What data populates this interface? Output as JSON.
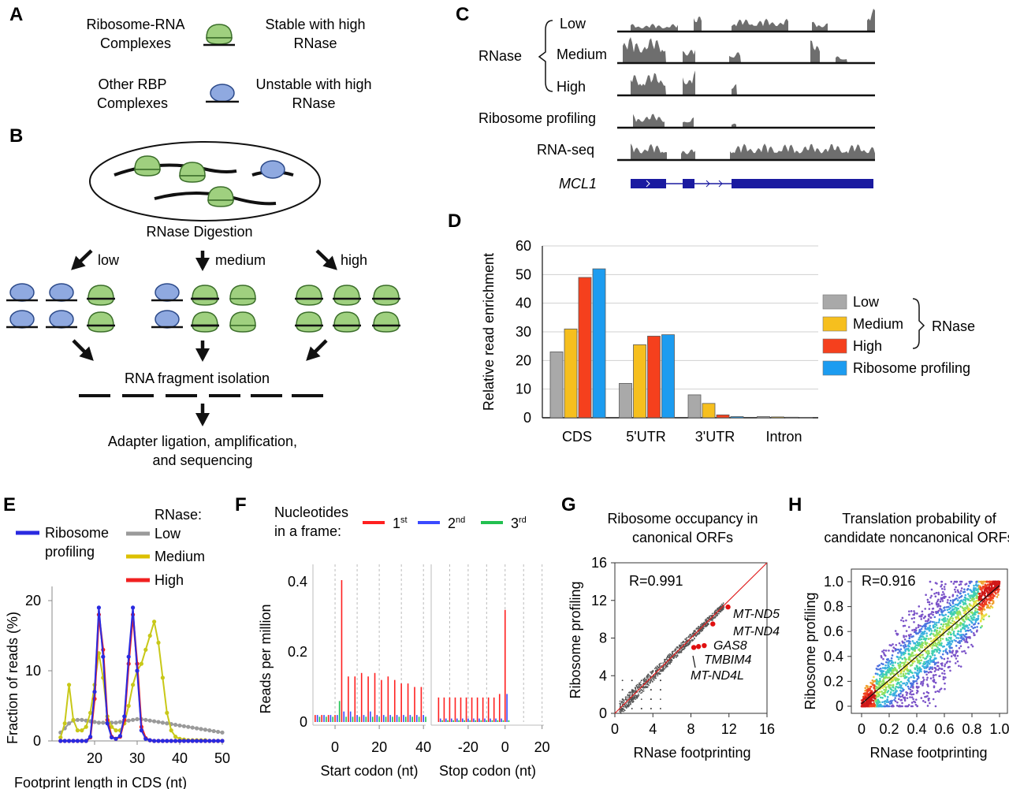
{
  "panels": [
    "A",
    "B",
    "C",
    "D",
    "E",
    "F",
    "G",
    "H"
  ],
  "panel_a": {
    "row1_left": [
      "Ribosome-RNA",
      "Complexes"
    ],
    "row1_right": [
      "Stable with high",
      "RNase"
    ],
    "row2_left": [
      "Other RBP",
      "Complexes"
    ],
    "row2_right": [
      "Unstable with high",
      "RNase"
    ]
  },
  "panel_b": {
    "digestion": "RNase  Digestion",
    "conditions": [
      "low",
      "medium",
      "high"
    ],
    "isolation": "RNA fragment isolation",
    "final": [
      "Adapter ligation, amplification,",
      "and sequencing"
    ]
  },
  "panel_c": {
    "group_label": "RNase",
    "tracks": [
      "Low",
      "Medium",
      "High",
      "Ribosome profiling",
      "RNA-seq"
    ],
    "gene": "MCL1"
  },
  "chart_data": [
    {
      "panel": "D",
      "type": "bar",
      "ylabel": "Relative read enrichment",
      "categories": [
        "CDS",
        "5'UTR",
        "3'UTR",
        "Intron"
      ],
      "ylim": [
        0,
        60
      ],
      "yticks": [
        0,
        10,
        20,
        30,
        40,
        50,
        60
      ],
      "series": [
        {
          "name": "Low",
          "color": "#a9a9a9",
          "values": [
            23,
            12,
            8,
            0.4
          ]
        },
        {
          "name": "Medium",
          "color": "#f6bf1e",
          "values": [
            31,
            25.5,
            5,
            0.3
          ]
        },
        {
          "name": "High",
          "color": "#f5401d",
          "values": [
            49,
            28.5,
            1,
            0.2
          ]
        },
        {
          "name": "Ribosome profiling",
          "color": "#1c9cf0",
          "values": [
            52,
            29,
            0.4,
            0.1
          ]
        }
      ],
      "legend_group_label": "RNase",
      "legend_position": "right",
      "grid": true
    },
    {
      "panel": "E",
      "type": "line",
      "ylabel": "Fraction of reads (%)",
      "xlabel": "Footprint length in CDS (nt)",
      "xlim": [
        10,
        50
      ],
      "ylim": [
        0,
        20
      ],
      "xticks": [
        20,
        30,
        40,
        50
      ],
      "yticks": [
        0,
        10,
        20
      ],
      "legend_left": "Ribosome profiling",
      "legend_right_title": "RNase:",
      "x": [
        12,
        13,
        14,
        15,
        16,
        17,
        18,
        19,
        20,
        21,
        22,
        23,
        24,
        25,
        26,
        27,
        28,
        29,
        30,
        31,
        32,
        33,
        34,
        35,
        36,
        37,
        38,
        39,
        40,
        41,
        42,
        43,
        44,
        45,
        46,
        47,
        48,
        49,
        50
      ],
      "series": [
        {
          "name": "Low",
          "color": "#9a9a9a",
          "values": [
            1.2,
            1.8,
            2.5,
            2.9,
            3,
            3,
            2.9,
            2.8,
            2.7,
            2.6,
            2.6,
            2.6,
            2.6,
            2.6,
            2.7,
            2.8,
            2.9,
            3,
            3.1,
            3.1,
            3,
            2.9,
            2.8,
            2.7,
            2.6,
            2.5,
            2.4,
            2.3,
            2.2,
            2.1,
            2,
            1.9,
            1.8,
            1.7,
            1.6,
            1.5,
            1.4,
            1.3,
            1.2
          ]
        },
        {
          "name": "Medium",
          "color": "#c8c818",
          "values": [
            0.5,
            2.5,
            8,
            3,
            1.5,
            1.5,
            2,
            4,
            8,
            12.5,
            9,
            3.5,
            2,
            1.5,
            1.5,
            2.5,
            5,
            8,
            10,
            11,
            13,
            15,
            17,
            14,
            9,
            4,
            1.5,
            0.6,
            0.3,
            0.2,
            0.1,
            0.1,
            0.1,
            0.1,
            0.1,
            0,
            0,
            0,
            0
          ]
        },
        {
          "name": "High",
          "color": "#f02020",
          "values": [
            0,
            0,
            0,
            0,
            0,
            0,
            0,
            0.5,
            6,
            18,
            13,
            3,
            0.6,
            0.3,
            0.6,
            3,
            11,
            18,
            11,
            2,
            0.4,
            0.1,
            0,
            0,
            0,
            0,
            0,
            0,
            0,
            0,
            0,
            0,
            0,
            0,
            0,
            0,
            0,
            0,
            0
          ]
        },
        {
          "name": "Ribosome profiling",
          "color": "#2a2ae0",
          "values": [
            0,
            0,
            0,
            0,
            0,
            0,
            0,
            0.6,
            7,
            19,
            12,
            2.5,
            0.5,
            0.3,
            0.7,
            3.5,
            12,
            19,
            10,
            1.5,
            0.3,
            0.1,
            0,
            0,
            0,
            0,
            0,
            0,
            0,
            0,
            0,
            0,
            0,
            0,
            0,
            0,
            0,
            0,
            0
          ]
        }
      ]
    },
    {
      "panel": "F",
      "type": "bar",
      "ylabel": "Reads per million",
      "legend_title": [
        "Nucleotides",
        "in a frame:"
      ],
      "frames": [
        {
          "name": "1",
          "sup": "st",
          "color": "#ff2020"
        },
        {
          "name": "2",
          "sup": "nd",
          "color": "#3a4aff"
        },
        {
          "name": "3",
          "sup": "rd",
          "color": "#22c050"
        }
      ],
      "ylim": [
        0,
        0.45
      ],
      "yticks": [
        0,
        0.2,
        0.4
      ],
      "start": {
        "xlabel": "Start codon (nt)",
        "xlim": [
          -10,
          41
        ],
        "xticks": [
          0,
          20,
          40
        ],
        "frame1_x": [
          -9,
          -6,
          -3,
          0,
          3,
          6,
          9,
          12,
          15,
          18,
          21,
          24,
          27,
          30,
          33,
          36,
          39
        ],
        "frame1": [
          0.02,
          0.02,
          0.02,
          0.02,
          0.405,
          0.13,
          0.13,
          0.14,
          0.13,
          0.14,
          0.12,
          0.13,
          0.12,
          0.11,
          0.11,
          0.1,
          0.1
        ],
        "frame2": [
          0.02,
          0.02,
          0.02,
          0.02,
          0.03,
          0.03,
          0.02,
          0.02,
          0.03,
          0.02,
          0.02,
          0.02,
          0.02,
          0.02,
          0.02,
          0.02,
          0.02
        ],
        "frame3": [
          0.015,
          0.015,
          0.015,
          0.06,
          0.015,
          0.015,
          0.015,
          0.015,
          0.015,
          0.015,
          0.015,
          0.015,
          0.015,
          0.015,
          0.015,
          0.015,
          0.015
        ]
      },
      "stop": {
        "xlabel": "Stop codon (nt)",
        "xlim": [
          -40,
          21
        ],
        "xticks": [
          -20,
          0,
          20
        ],
        "frame1_x": [
          -36,
          -33,
          -30,
          -27,
          -24,
          -21,
          -18,
          -15,
          -12,
          -9,
          -6,
          -3,
          0
        ],
        "frame1": [
          0.07,
          0.07,
          0.07,
          0.07,
          0.07,
          0.07,
          0.07,
          0.07,
          0.07,
          0.07,
          0.07,
          0.08,
          0.32
        ],
        "frame2": [
          0.01,
          0.01,
          0.01,
          0.01,
          0.01,
          0.01,
          0.01,
          0.01,
          0.01,
          0.01,
          0.01,
          0.01,
          0.08
        ],
        "frame3": [
          0.005,
          0.005,
          0.005,
          0.005,
          0.005,
          0.005,
          0.005,
          0.005,
          0.005,
          0.005,
          0.005,
          0.005,
          0.005
        ]
      }
    },
    {
      "panel": "G",
      "type": "scatter",
      "title": [
        "Ribosome occupancy in",
        "canonical ORFs"
      ],
      "xlabel": "RNase footprinting",
      "ylabel": "Ribosome profiling",
      "xlim": [
        0,
        16
      ],
      "ylim": [
        0,
        16
      ],
      "xticks": [
        0,
        4,
        8,
        12,
        16
      ],
      "yticks": [
        0,
        4,
        8,
        12,
        16
      ],
      "annotation": "R=0.991",
      "highlighted": [
        {
          "label": "MT-ND5",
          "x": 11.9,
          "y": 11.3
        },
        {
          "label": "MT-ND4",
          "x": 10.3,
          "y": 9.5
        },
        {
          "label": "GAS8",
          "x": 9.4,
          "y": 7.2
        },
        {
          "label": "TMBIM4",
          "x": 8.8,
          "y": 7.1
        },
        {
          "label": "MT-ND4L",
          "x": 8.3,
          "y": 7.0
        }
      ]
    },
    {
      "panel": "H",
      "type": "scatter",
      "title": [
        "Translation probability of",
        "candidate noncanonical ORFs"
      ],
      "xlabel": "RNase footprinting",
      "ylabel": "Ribosome profiling",
      "xlim": [
        0,
        1
      ],
      "ylim": [
        0,
        1
      ],
      "xticks": [
        "0",
        "0.2",
        "0.4",
        "0.6",
        "0.8",
        "1.0"
      ],
      "yticks": [
        "0",
        "0.2",
        "0.4",
        "0.6",
        "0.8",
        "1.0"
      ],
      "annotation": "R=0.916"
    }
  ]
}
